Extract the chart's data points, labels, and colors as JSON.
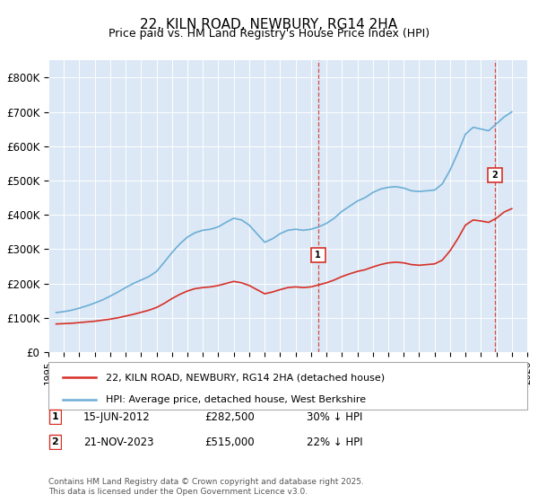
{
  "title": "22, KILN ROAD, NEWBURY, RG14 2HA",
  "subtitle": "Price paid vs. HM Land Registry's House Price Index (HPI)",
  "ylabel": "",
  "ylim": [
    0,
    850000
  ],
  "yticks": [
    0,
    100000,
    200000,
    300000,
    400000,
    500000,
    600000,
    700000,
    800000
  ],
  "ytick_labels": [
    "£0",
    "£100K",
    "£200K",
    "£300K",
    "£400K",
    "£500K",
    "£600K",
    "£700K",
    "£800K"
  ],
  "hpi_color": "#6baed6",
  "price_color": "#d73027",
  "dashed_color": "#d73027",
  "background_color": "#e8f0f8",
  "plot_bg": "#dce8f5",
  "legend_label_price": "22, KILN ROAD, NEWBURY, RG14 2HA (detached house)",
  "legend_label_hpi": "HPI: Average price, detached house, West Berkshire",
  "marker1_label": "1",
  "marker2_label": "2",
  "marker1_date": "15-JUN-2012",
  "marker1_price": "£282,500",
  "marker1_pct": "30% ↓ HPI",
  "marker2_date": "21-NOV-2023",
  "marker2_price": "£515,000",
  "marker2_pct": "22% ↓ HPI",
  "footer": "Contains HM Land Registry data © Crown copyright and database right 2025.\nThis data is licensed under the Open Government Licence v3.0.",
  "hpi_x": [
    1995.5,
    1996.0,
    1996.5,
    1997.0,
    1997.5,
    1998.0,
    1998.5,
    1999.0,
    1999.5,
    2000.0,
    2000.5,
    2001.0,
    2001.5,
    2002.0,
    2002.5,
    2003.0,
    2003.5,
    2004.0,
    2004.5,
    2005.0,
    2005.5,
    2006.0,
    2006.5,
    2007.0,
    2007.5,
    2008.0,
    2008.5,
    2009.0,
    2009.5,
    2010.0,
    2010.5,
    2011.0,
    2011.5,
    2012.0,
    2012.5,
    2013.0,
    2013.5,
    2014.0,
    2014.5,
    2015.0,
    2015.5,
    2016.0,
    2016.5,
    2017.0,
    2017.5,
    2018.0,
    2018.5,
    2019.0,
    2019.5,
    2020.0,
    2020.5,
    2021.0,
    2021.5,
    2022.0,
    2022.5,
    2023.0,
    2023.5,
    2024.0,
    2024.5,
    2025.0
  ],
  "hpi_y": [
    115000,
    118000,
    122000,
    128000,
    135000,
    143000,
    152000,
    163000,
    175000,
    188000,
    200000,
    210000,
    220000,
    235000,
    262000,
    290000,
    315000,
    335000,
    348000,
    355000,
    358000,
    365000,
    378000,
    390000,
    385000,
    370000,
    345000,
    320000,
    330000,
    345000,
    355000,
    358000,
    355000,
    358000,
    365000,
    375000,
    390000,
    410000,
    425000,
    440000,
    450000,
    465000,
    475000,
    480000,
    482000,
    478000,
    470000,
    468000,
    470000,
    472000,
    490000,
    530000,
    580000,
    635000,
    655000,
    650000,
    645000,
    665000,
    685000,
    700000
  ],
  "price_x": [
    1995.5,
    1996.0,
    1996.5,
    1997.0,
    1997.5,
    1998.0,
    1998.5,
    1999.0,
    1999.5,
    2000.0,
    2000.5,
    2001.0,
    2001.5,
    2002.0,
    2002.5,
    2003.0,
    2003.5,
    2004.0,
    2004.5,
    2005.0,
    2005.5,
    2006.0,
    2006.5,
    2007.0,
    2007.5,
    2008.0,
    2008.5,
    2009.0,
    2009.5,
    2010.0,
    2010.5,
    2011.0,
    2011.5,
    2012.0,
    2012.5,
    2013.0,
    2013.5,
    2014.0,
    2014.5,
    2015.0,
    2015.5,
    2016.0,
    2016.5,
    2017.0,
    2017.5,
    2018.0,
    2018.5,
    2019.0,
    2019.5,
    2020.0,
    2020.5,
    2021.0,
    2021.5,
    2022.0,
    2022.5,
    2023.0,
    2023.5,
    2024.0,
    2024.5,
    2025.0
  ],
  "price_y": [
    82000,
    83000,
    84000,
    86000,
    88000,
    90000,
    93000,
    96000,
    100000,
    105000,
    110000,
    116000,
    122000,
    130000,
    142000,
    156000,
    168000,
    178000,
    185000,
    188000,
    190000,
    194000,
    200000,
    206000,
    202000,
    194000,
    182000,
    170000,
    175000,
    182000,
    188000,
    190000,
    188000,
    190000,
    196000,
    202000,
    210000,
    220000,
    228000,
    235000,
    240000,
    248000,
    255000,
    260000,
    262000,
    260000,
    255000,
    253000,
    255000,
    257000,
    268000,
    295000,
    330000,
    370000,
    385000,
    382000,
    378000,
    390000,
    408000,
    418000
  ],
  "marker1_x": 2012.46,
  "marker1_y": 282500,
  "marker2_x": 2023.9,
  "marker2_y": 515000,
  "xmin": 1995,
  "xmax": 2026
}
